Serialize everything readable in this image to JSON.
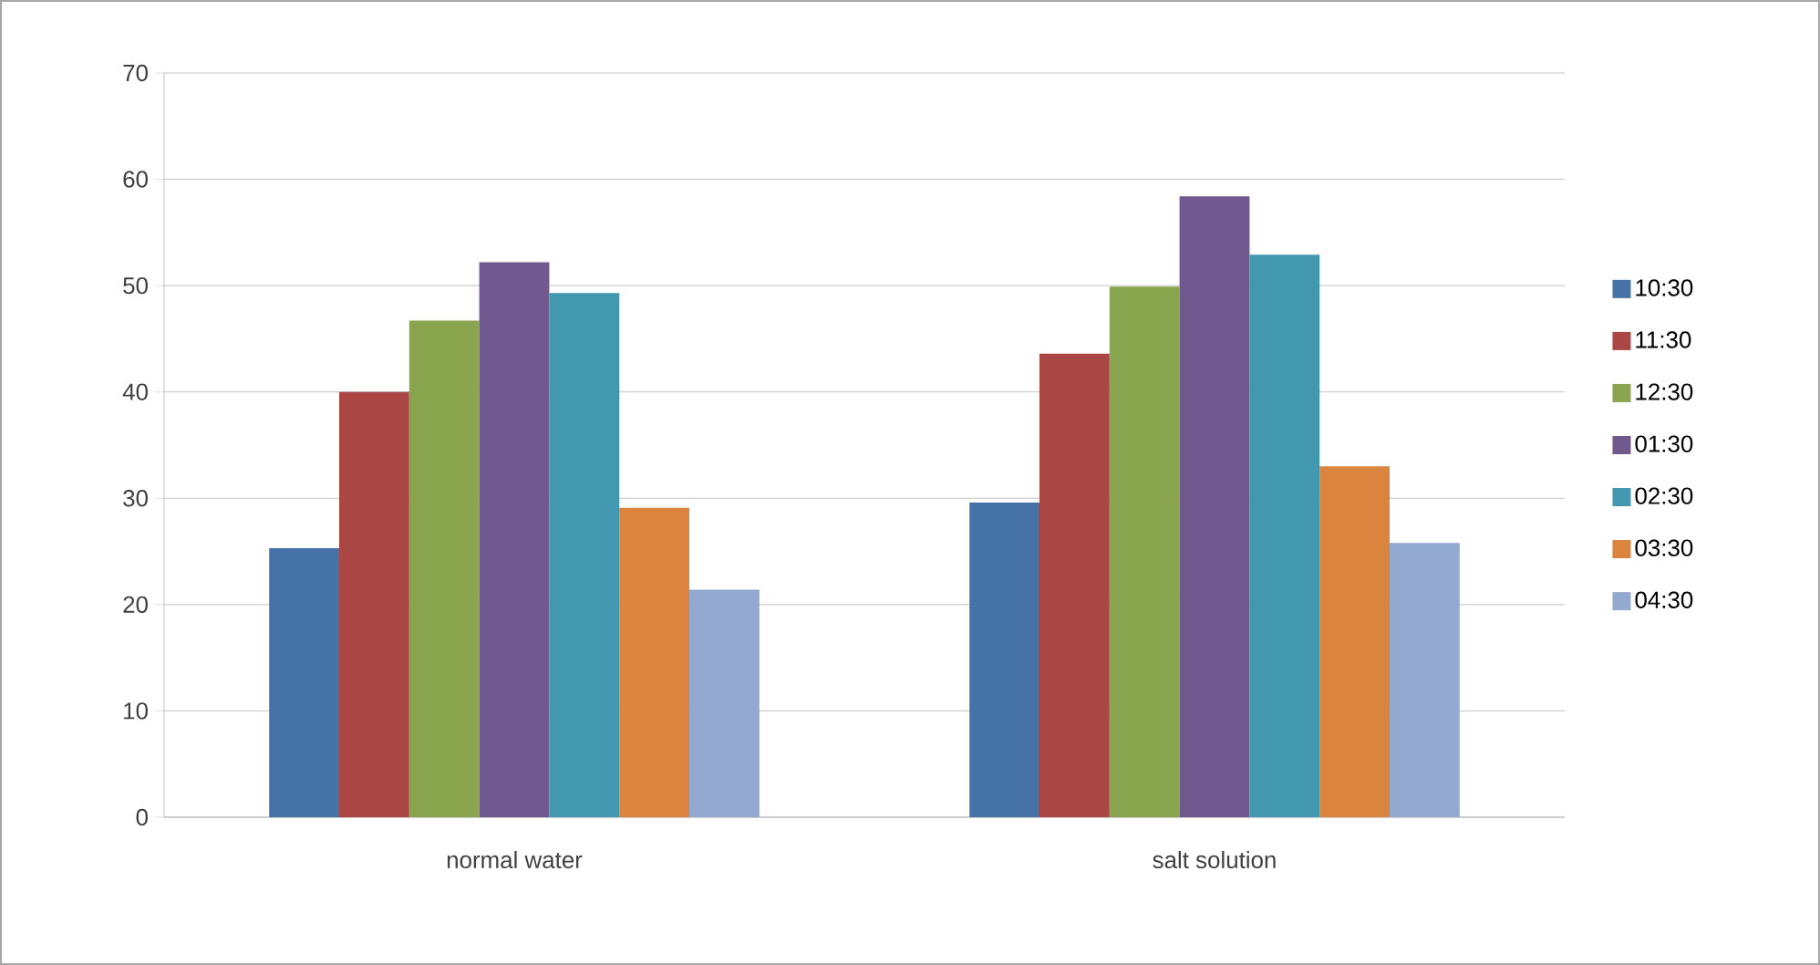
{
  "chart_data": {
    "type": "bar",
    "categories": [
      "normal water",
      "salt solution"
    ],
    "series": [
      {
        "name": "10:30",
        "color": "#4572a7",
        "values": [
          25.3,
          29.6
        ]
      },
      {
        "name": "11:30",
        "color": "#aa4643",
        "values": [
          40.0,
          43.6
        ]
      },
      {
        "name": "12:30",
        "color": "#89a54e",
        "values": [
          46.7,
          49.9
        ]
      },
      {
        "name": "01:30",
        "color": "#71588f",
        "values": [
          52.2,
          58.4
        ]
      },
      {
        "name": "02:30",
        "color": "#4198af",
        "values": [
          49.3,
          52.9
        ]
      },
      {
        "name": "03:30",
        "color": "#db843d",
        "values": [
          29.1,
          33.0
        ]
      },
      {
        "name": "04:30",
        "color": "#93a9cf",
        "values": [
          21.4,
          25.8
        ]
      }
    ],
    "ylim": [
      0,
      70
    ],
    "yticks": [
      0,
      10,
      20,
      30,
      40,
      50,
      60,
      70
    ],
    "grid": "y",
    "legend": "right"
  }
}
